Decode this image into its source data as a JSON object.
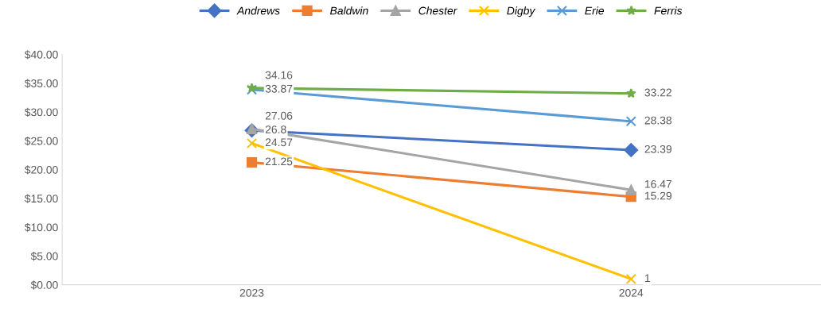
{
  "chart_data": {
    "type": "line",
    "categories": [
      "2023",
      "2024"
    ],
    "ylim": [
      0,
      40
    ],
    "yticks": [
      {
        "value": 0,
        "label": "$0.00"
      },
      {
        "value": 5,
        "label": "$5.00"
      },
      {
        "value": 10,
        "label": "$10.00"
      },
      {
        "value": 15,
        "label": "$15.00"
      },
      {
        "value": 20,
        "label": "$20.00"
      },
      {
        "value": 25,
        "label": "$25.00"
      },
      {
        "value": 30,
        "label": "$30.00"
      },
      {
        "value": 35,
        "label": "$35.00"
      },
      {
        "value": 40,
        "label": "$40.00"
      }
    ],
    "legend": "top",
    "grid": false,
    "line_style": "solid",
    "series": [
      {
        "name": "Andrews",
        "color": "#4472c4",
        "marker": "diamond",
        "values": [
          26.8,
          23.39
        ],
        "value_labels": [
          "26.8",
          "23.39"
        ]
      },
      {
        "name": "Baldwin",
        "color": "#ed7d31",
        "marker": "square",
        "values": [
          21.25,
          15.29
        ],
        "value_labels": [
          "21.25",
          "15.29"
        ]
      },
      {
        "name": "Chester",
        "color": "#a5a5a5",
        "marker": "triangle",
        "values": [
          27.06,
          16.47
        ],
        "value_labels": [
          "27.06",
          "16.47"
        ]
      },
      {
        "name": "Digby",
        "color": "#ffc000",
        "marker": "cross",
        "values": [
          24.57,
          1
        ],
        "value_labels": [
          "24.57",
          "1"
        ]
      },
      {
        "name": "Erie",
        "color": "#5b9bd5",
        "marker": "cross",
        "values": [
          33.87,
          28.38
        ],
        "value_labels": [
          "33.87",
          "28.38"
        ]
      },
      {
        "name": "Ferris",
        "color": "#70ad47",
        "marker": "star",
        "values": [
          34.16,
          33.22
        ],
        "value_labels": [
          "34.16",
          "33.22"
        ]
      }
    ]
  }
}
